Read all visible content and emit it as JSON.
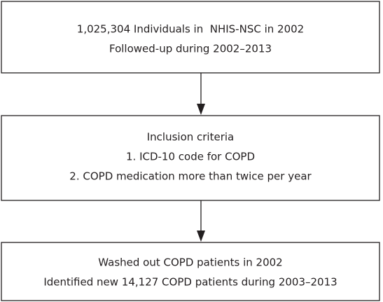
{
  "nodes": [
    {
      "lines": [
        "1,025,304 Individuals in  NHIS-NSC in 2002",
        "Followed-up during 2002–2013"
      ]
    },
    {
      "lines": [
        "Inclusion criteria",
        "1. ICD-10 code for COPD",
        "2. COPD medication more than twice per year"
      ]
    },
    {
      "lines": [
        "Washed out COPD patients in 2002",
        "Identified new 14,127 COPD patients during 2003–2013"
      ]
    }
  ]
}
